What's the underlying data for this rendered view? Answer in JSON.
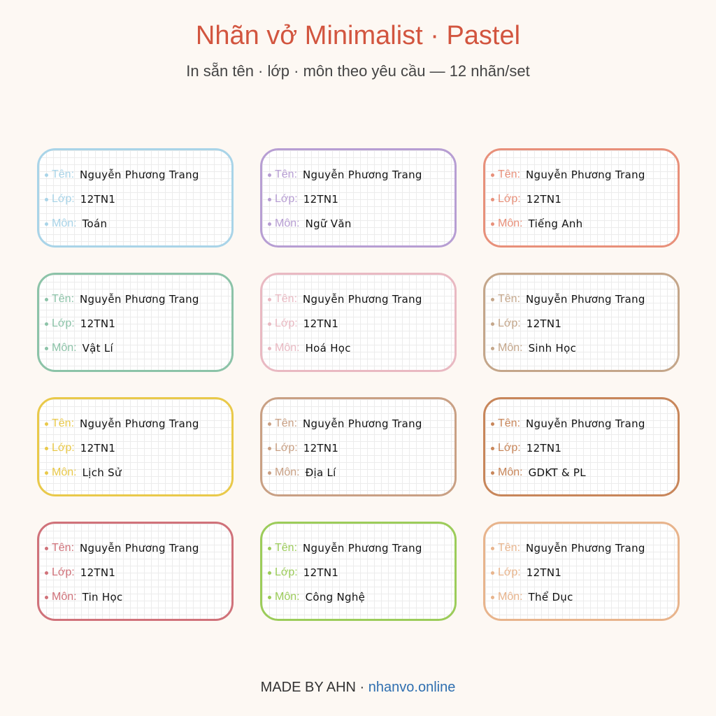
{
  "header": {
    "title": "Nhãn vở Minimalist · Pastel",
    "subtitle": "In sẵn tên · lớp · môn theo yêu cầu — 12 nhãn/set"
  },
  "labels": [
    {
      "color": "#a9d4e8",
      "fields": [
        {
          "label": "Tên:",
          "value": "Nguyễn Phương Trang"
        },
        {
          "label": "Lớp:",
          "value": "12TN1"
        },
        {
          "label": "Môn:",
          "value": "Toán"
        }
      ]
    },
    {
      "color": "#b79ed3",
      "fields": [
        {
          "label": "Tên:",
          "value": "Nguyễn Phương Trang"
        },
        {
          "label": "Lớp:",
          "value": "12TN1"
        },
        {
          "label": "Môn:",
          "value": "Ngữ Văn"
        }
      ]
    },
    {
      "color": "#e8907a",
      "fields": [
        {
          "label": "Tên:",
          "value": "Nguyễn Phương Trang"
        },
        {
          "label": "Lớp:",
          "value": "12TN1"
        },
        {
          "label": "Môn:",
          "value": "Tiếng Anh"
        }
      ]
    },
    {
      "color": "#8cc3a8",
      "fields": [
        {
          "label": "Tên:",
          "value": "Nguyễn Phương Trang"
        },
        {
          "label": "Lớp:",
          "value": "12TN1"
        },
        {
          "label": "Môn:",
          "value": "Vật Lí"
        }
      ]
    },
    {
      "color": "#e9b9c2",
      "fields": [
        {
          "label": "Tên:",
          "value": "Nguyễn Phương Trang"
        },
        {
          "label": "Lớp:",
          "value": "12TN1"
        },
        {
          "label": "Môn:",
          "value": "Hoá Học"
        }
      ]
    },
    {
      "color": "#c4a68a",
      "fields": [
        {
          "label": "Tên:",
          "value": "Nguyễn Phương Trang"
        },
        {
          "label": "Lớp:",
          "value": "12TN1"
        },
        {
          "label": "Môn:",
          "value": "Sinh Học"
        }
      ]
    },
    {
      "color": "#e9c94a",
      "fields": [
        {
          "label": "Tên:",
          "value": "Nguyễn Phương Trang"
        },
        {
          "label": "Lớp:",
          "value": "12TN1"
        },
        {
          "label": "Môn:",
          "value": "Lịch Sử"
        }
      ]
    },
    {
      "color": "#c9a084",
      "fields": [
        {
          "label": "Tên:",
          "value": "Nguyễn Phương Trang"
        },
        {
          "label": "Lớp:",
          "value": "12TN1"
        },
        {
          "label": "Môn:",
          "value": "Địa Lí"
        }
      ]
    },
    {
      "color": "#c8865a",
      "fields": [
        {
          "label": "Tên:",
          "value": "Nguyễn Phương Trang"
        },
        {
          "label": "Lớp:",
          "value": "12TN1"
        },
        {
          "label": "Môn:",
          "value": "GDKT & PL"
        }
      ]
    },
    {
      "color": "#d0727a",
      "fields": [
        {
          "label": "Tên:",
          "value": "Nguyễn Phương Trang"
        },
        {
          "label": "Lớp:",
          "value": "12TN1"
        },
        {
          "label": "Môn:",
          "value": "Tin Học"
        }
      ]
    },
    {
      "color": "#9ccc5a",
      "fields": [
        {
          "label": "Tên:",
          "value": "Nguyễn Phương Trang"
        },
        {
          "label": "Lớp:",
          "value": "12TN1"
        },
        {
          "label": "Môn:",
          "value": "Công Nghệ"
        }
      ]
    },
    {
      "color": "#e8b48c",
      "fields": [
        {
          "label": "Tên:",
          "value": "Nguyễn Phương Trang"
        },
        {
          "label": "Lớp:",
          "value": "12TN1"
        },
        {
          "label": "Môn:",
          "value": "Thể Dục"
        }
      ]
    }
  ],
  "footer": {
    "credit": "MADE BY AHN ·",
    "link": "nhanvo.online"
  }
}
